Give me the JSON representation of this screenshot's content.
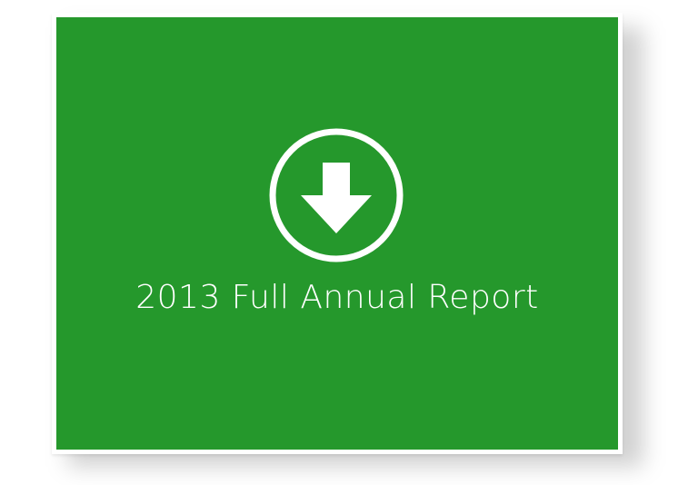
{
  "tile": {
    "title": "2013 Full Annual Report",
    "icon": "download-arrow-circle-icon",
    "background_color": "#25982c",
    "foreground_color": "#ffffff"
  }
}
